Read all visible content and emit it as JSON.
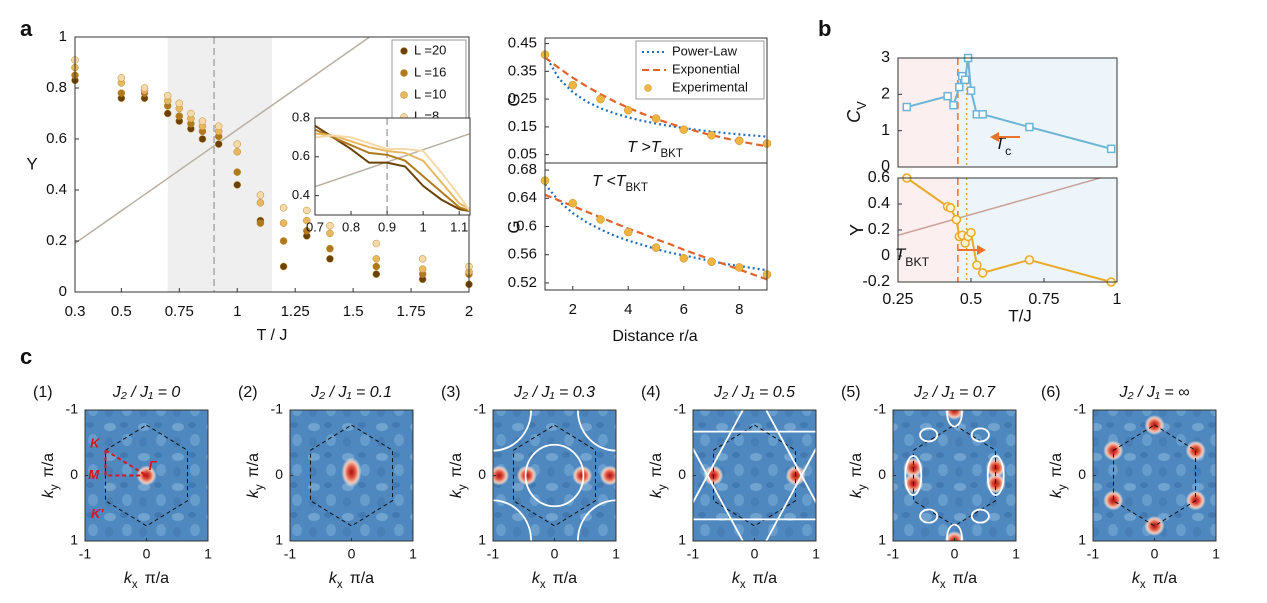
{
  "panels": [
    "a",
    "b",
    "c"
  ],
  "chart_data": [
    {
      "type": "scatter",
      "xlabel": "T / J",
      "ylabel": "Y",
      "xlim": [
        0.3,
        2
      ],
      "ylim": [
        0,
        1
      ],
      "xticks": [
        0.3,
        0.5,
        0.75,
        1,
        1.25,
        1.5,
        1.75,
        2
      ],
      "yticks": [
        0,
        0.2,
        0.4,
        0.6,
        0.8,
        1
      ],
      "shade": [
        0.7,
        1.15
      ],
      "shade_color": "#efefef",
      "vlines": [
        {
          "x": 0.9,
          "color": "#a8a8a8",
          "style": "dashed"
        }
      ],
      "refline": {
        "x": [
          0.3,
          1.571
        ],
        "y": [
          0.191,
          1
        ],
        "color": "#b8b0a4"
      },
      "legend": "upper right",
      "x": [
        0.3,
        0.5,
        0.6,
        0.7,
        0.75,
        0.8,
        0.85,
        0.92,
        1.0,
        1.1,
        1.2,
        1.3,
        1.4,
        1.6,
        1.8,
        2.0
      ],
      "series": [
        {
          "name": "L =20",
          "color": "#6b4204",
          "marker": "circle",
          "values": [
            0.83,
            0.76,
            0.76,
            0.7,
            0.67,
            0.64,
            0.6,
            0.58,
            0.42,
            0.28,
            0.1,
            0.22,
            0.13,
            0.07,
            0.05,
            0.03
          ]
        },
        {
          "name": "L =16",
          "color": "#b07a1c",
          "marker": "circle",
          "values": [
            0.85,
            0.78,
            0.78,
            0.73,
            0.69,
            0.66,
            0.63,
            0.61,
            0.47,
            0.27,
            0.2,
            0.24,
            0.17,
            0.1,
            0.07,
            0.07
          ]
        },
        {
          "name": "L =10",
          "color": "#e8b860",
          "marker": "circle",
          "values": [
            0.88,
            0.82,
            0.79,
            0.75,
            0.72,
            0.68,
            0.65,
            0.63,
            0.55,
            0.35,
            0.27,
            0.28,
            0.23,
            0.13,
            0.09,
            0.08
          ]
        },
        {
          "name": "L =8",
          "color": "#f6d9a8",
          "marker": "circle",
          "values": [
            0.91,
            0.84,
            0.8,
            0.77,
            0.74,
            0.7,
            0.67,
            0.65,
            0.58,
            0.38,
            0.33,
            0.32,
            0.26,
            0.19,
            0.13,
            0.1
          ]
        }
      ]
    },
    {
      "type": "line",
      "xlim": [
        0.7,
        1.13
      ],
      "ylim": [
        0.3,
        0.8
      ],
      "xticks": [
        0.7,
        0.8,
        0.9,
        1,
        1.1
      ],
      "yticks": [
        0.4,
        0.6,
        0.8
      ],
      "vlines": [
        {
          "x": 0.9,
          "color": "#a8a8a8",
          "style": "dashed"
        }
      ],
      "refline": {
        "x": [
          0.7,
          1.13
        ],
        "y": [
          0.446,
          0.719
        ],
        "color": "#b8b0a4"
      },
      "x": [
        0.7,
        0.75,
        0.8,
        0.85,
        0.9,
        0.95,
        1.0,
        1.05,
        1.1,
        1.13
      ],
      "series": [
        {
          "color": "#6b4204",
          "line": "solid",
          "values": [
            0.76,
            0.7,
            0.64,
            0.57,
            0.57,
            0.55,
            0.45,
            0.38,
            0.33,
            0.32
          ]
        },
        {
          "color": "#b07a1c",
          "line": "solid",
          "values": [
            0.74,
            0.7,
            0.66,
            0.62,
            0.61,
            0.58,
            0.5,
            0.42,
            0.34,
            0.32
          ]
        },
        {
          "color": "#e8b860",
          "line": "solid",
          "values": [
            0.72,
            0.71,
            0.68,
            0.65,
            0.63,
            0.62,
            0.58,
            0.47,
            0.36,
            0.33
          ]
        },
        {
          "color": "#f6d9a8",
          "line": "solid",
          "values": [
            0.7,
            0.71,
            0.7,
            0.67,
            0.64,
            0.64,
            0.63,
            0.52,
            0.4,
            0.32
          ]
        }
      ]
    },
    {
      "type": "line",
      "ylabel": "G",
      "xlim": [
        1,
        9
      ],
      "ylim": [
        0.02,
        0.47
      ],
      "yticks": [
        0.05,
        0.15,
        0.25,
        0.35,
        0.45
      ],
      "legend": "upper right",
      "annotations": [
        {
          "text": "T >T",
          "sub": "BKT"
        }
      ],
      "x": [
        1,
        1.5,
        2,
        2.5,
        3,
        3.5,
        4,
        4.5,
        5,
        5.5,
        6,
        6.5,
        7,
        7.5,
        8,
        8.5,
        9
      ],
      "series": [
        {
          "name": "Power-Law",
          "color": "#1f6fbf",
          "line": "dotted",
          "values": [
            0.41,
            0.324,
            0.275,
            0.241,
            0.217,
            0.199,
            0.184,
            0.172,
            0.162,
            0.153,
            0.146,
            0.139,
            0.133,
            0.128,
            0.123,
            0.119,
            0.115
          ]
        },
        {
          "name": "Exponential",
          "color": "#e0632a",
          "line": "dashed",
          "values": [
            0.4,
            0.362,
            0.327,
            0.296,
            0.268,
            0.242,
            0.219,
            0.198,
            0.179,
            0.162,
            0.147,
            0.133,
            0.12,
            0.109,
            0.098,
            0.089,
            0.08
          ]
        },
        {
          "name": "Experimental",
          "color": "#f2b440",
          "line": "none",
          "marker": "circle",
          "values": [
            0.41,
            null,
            0.3,
            null,
            0.25,
            null,
            0.21,
            null,
            0.18,
            null,
            0.14,
            null,
            0.12,
            null,
            0.1,
            null,
            0.09
          ]
        }
      ]
    },
    {
      "type": "line",
      "ylabel": "G",
      "xlabel": "Distance r/a",
      "xlim": [
        1,
        9
      ],
      "ylim": [
        0.51,
        0.69
      ],
      "xticks": [
        2,
        4,
        6,
        8
      ],
      "yticks": [
        0.52,
        0.56,
        0.6,
        0.64,
        0.68
      ],
      "annotations": [
        {
          "text": "T <T",
          "sub": "BKT"
        }
      ],
      "x": [
        1,
        1.5,
        2,
        2.5,
        3,
        3.5,
        4,
        4.5,
        5,
        5.5,
        6,
        6.5,
        7,
        7.5,
        8,
        8.5,
        9
      ],
      "series": [
        {
          "color": "#1f6fbf",
          "line": "dotted",
          "values": [
            0.66,
            0.636,
            0.619,
            0.606,
            0.596,
            0.587,
            0.58,
            0.574,
            0.568,
            0.563,
            0.559,
            0.555,
            0.551,
            0.547,
            0.544,
            0.541,
            0.538
          ]
        },
        {
          "color": "#e0632a",
          "line": "dashed",
          "values": [
            0.645,
            0.637,
            0.629,
            0.621,
            0.613,
            0.605,
            0.597,
            0.59,
            0.582,
            0.575,
            0.567,
            0.56,
            0.553,
            0.546,
            0.539,
            0.532,
            0.525
          ]
        },
        {
          "color": "#f2b440",
          "line": "none",
          "marker": "circle",
          "values": [
            0.665,
            null,
            0.633,
            null,
            0.61,
            null,
            0.592,
            null,
            0.57,
            null,
            0.555,
            null,
            0.55,
            null,
            0.542,
            null,
            0.532
          ]
        }
      ]
    },
    {
      "type": "line",
      "ylabel": {
        "text": "C",
        "sub": "V"
      },
      "xlim": [
        0.25,
        1
      ],
      "ylim": [
        0,
        3
      ],
      "yticks": [
        0,
        1,
        2,
        3
      ],
      "regions": [
        {
          "from": 0.25,
          "to": 0.46,
          "color": "#fcefef"
        },
        {
          "from": 0.46,
          "to": 1,
          "color": "#edf5fb"
        }
      ],
      "vlines": [
        {
          "x": 0.455,
          "color": "#e8742c",
          "style": "dashed"
        },
        {
          "x": 0.485,
          "color": "#e8a23c",
          "style": "dotted"
        }
      ],
      "annotations": [
        {
          "text": "T",
          "sub": "c"
        }
      ],
      "x": [
        0.28,
        0.42,
        0.44,
        0.46,
        0.47,
        0.48,
        0.49,
        0.5,
        0.52,
        0.54,
        0.7,
        0.98
      ],
      "series": [
        {
          "color": "#6cb4d6",
          "line": "solid",
          "marker": "square",
          "values": [
            1.65,
            1.95,
            1.7,
            2.2,
            2.5,
            2.4,
            3.0,
            2.1,
            1.45,
            1.45,
            1.1,
            0.5
          ]
        }
      ]
    },
    {
      "type": "line",
      "ylabel": "Y",
      "xlabel": "T/J",
      "xlim": [
        0.25,
        1
      ],
      "ylim": [
        -0.2,
        0.6
      ],
      "xticks": [
        0.25,
        0.5,
        0.75,
        1
      ],
      "yticks": [
        -0.2,
        0,
        0.2,
        0.4,
        0.6
      ],
      "regions": [
        {
          "from": 0.25,
          "to": 0.46,
          "color": "#fcefef"
        },
        {
          "from": 0.46,
          "to": 1,
          "color": "#edf5fb"
        }
      ],
      "vlines": [
        {
          "x": 0.455,
          "color": "#e8742c",
          "style": "dashed"
        },
        {
          "x": 0.485,
          "color": "#e8a23c",
          "style": "dotted"
        }
      ],
      "refline": {
        "x": [
          0.25,
          1
        ],
        "y": [
          0.159,
          0.637
        ],
        "color": "#c9a29a"
      },
      "annotations": [
        {
          "text": "T",
          "sub": "BKT"
        }
      ],
      "x": [
        0.28,
        0.42,
        0.43,
        0.45,
        0.46,
        0.47,
        0.48,
        0.49,
        0.5,
        0.52,
        0.54,
        0.7,
        0.98
      ],
      "series": [
        {
          "color": "#eaaa2a",
          "line": "solid",
          "marker": "circle",
          "marker_fill": "#fff3d6",
          "values": [
            0.6,
            0.38,
            0.37,
            0.28,
            0.15,
            0.16,
            0.1,
            0.15,
            0.18,
            -0.07,
            -0.13,
            -0.03,
            -0.2
          ]
        }
      ]
    },
    {
      "type": "heatmap",
      "index": "(1)",
      "title": "J₂ / J₁ = 0",
      "xlim": [
        -1,
        1
      ],
      "ylim": [
        1,
        -1
      ],
      "xticks": [
        -1,
        0,
        1
      ],
      "yticks": [
        -1,
        0,
        1
      ],
      "xlabel": {
        "text": "k",
        "sub": "x",
        "unit": "π/a"
      },
      "ylabel": {
        "text": "k",
        "sub": "y",
        "unit": "π/a"
      },
      "labels": [
        "K",
        "M",
        "K'",
        "Γ"
      ],
      "overlay": "path",
      "peaks": {
        "x": [
          0
        ],
        "y": [
          0
        ]
      }
    },
    {
      "type": "heatmap",
      "index": "(2)",
      "title": "J₂ / J₁ = 0.1",
      "xlim": [
        -1,
        1
      ],
      "ylim": [
        1,
        -1
      ],
      "xticks": [
        -1,
        0,
        1
      ],
      "yticks": [
        -1,
        0,
        1
      ],
      "xlabel": {
        "text": "k",
        "sub": "x",
        "unit": "π/a"
      },
      "ylabel": {
        "text": "k",
        "sub": "y",
        "unit": "π/a"
      },
      "overlay": "none",
      "peaks": {
        "x": [
          0
        ],
        "y": [
          -0.05
        ]
      }
    },
    {
      "type": "heatmap",
      "index": "(3)",
      "title": "J₂ / J₁ = 0.3",
      "xlim": [
        -1,
        1
      ],
      "ylim": [
        1,
        -1
      ],
      "xticks": [
        -1,
        0,
        1
      ],
      "yticks": [
        -1,
        0,
        1
      ],
      "xlabel": {
        "text": "k",
        "sub": "x",
        "unit": "π/a"
      },
      "ylabel": {
        "text": "k",
        "sub": "y",
        "unit": "π/a"
      },
      "overlay": "circles",
      "peaks": {
        "x": [
          -0.9,
          -0.45,
          0.45,
          0.9
        ],
        "y": [
          0,
          0,
          0,
          0
        ]
      }
    },
    {
      "type": "heatmap",
      "index": "(4)",
      "title": "J₂ / J₁ = 0.5",
      "xlim": [
        -1,
        1
      ],
      "ylim": [
        1,
        -1
      ],
      "xticks": [
        -1,
        0,
        1
      ],
      "yticks": [
        -1,
        0,
        1
      ],
      "xlabel": {
        "text": "k",
        "sub": "x",
        "unit": "π/a"
      },
      "ylabel": {
        "text": "k",
        "sub": "y",
        "unit": "π/a"
      },
      "overlay": "star",
      "peaks": {
        "x": [
          -0.67,
          0.67
        ],
        "y": [
          0,
          0
        ]
      }
    },
    {
      "type": "heatmap",
      "index": "(5)",
      "title": "J₂ / J₁ = 0.7",
      "xlim": [
        -1,
        1
      ],
      "ylim": [
        1,
        -1
      ],
      "xticks": [
        -1,
        0,
        1
      ],
      "yticks": [
        -1,
        0,
        1
      ],
      "xlabel": {
        "text": "k",
        "sub": "x",
        "unit": "π/a"
      },
      "ylabel": {
        "text": "k",
        "sub": "y",
        "unit": "π/a"
      },
      "overlay": "loops",
      "peaks": {
        "x": [
          -0.67,
          -0.67,
          0.67,
          0.67,
          0,
          0
        ],
        "y": [
          -0.12,
          0.12,
          -0.12,
          0.12,
          -1,
          1
        ]
      }
    },
    {
      "type": "heatmap",
      "index": "(6)",
      "title": "J₂ / J₁ = ∞",
      "xlim": [
        -1,
        1
      ],
      "ylim": [
        1,
        -1
      ],
      "xticks": [
        -1,
        0,
        1
      ],
      "yticks": [
        -1,
        0,
        1
      ],
      "xlabel": {
        "text": "k",
        "sub": "x",
        "unit": "π/a"
      },
      "ylabel": {
        "text": "k",
        "sub": "y",
        "unit": "π/a"
      },
      "overlay": "none",
      "peaks": {
        "x": [
          0,
          0.67,
          0.67,
          0,
          -0.67,
          -0.67
        ],
        "y": [
          -0.77,
          -0.38,
          0.38,
          0.77,
          0.38,
          -0.38
        ]
      }
    }
  ]
}
